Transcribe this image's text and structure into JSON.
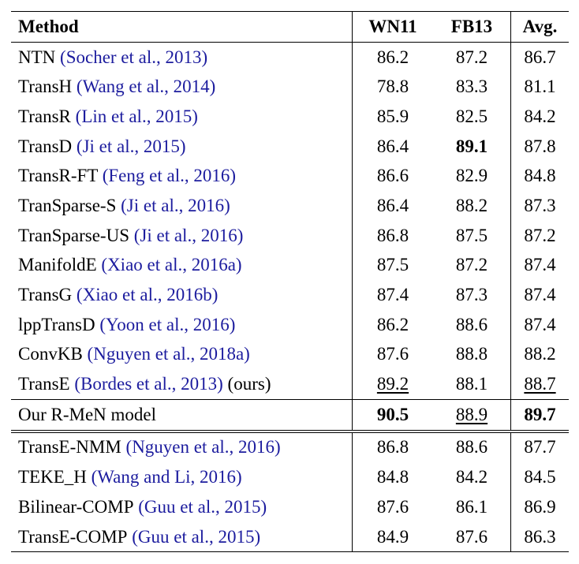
{
  "header": {
    "method": "Method",
    "wn11": "WN11",
    "fb13": "FB13",
    "avg": "Avg."
  },
  "rows": [
    {
      "name": "NTN",
      "name_sc": "",
      "cite": "(Socher et al., 2013)",
      "suffix": "",
      "wn11": "86.2",
      "fb13": "87.2",
      "avg": "86.7",
      "style": {
        "wn11": "",
        "fb13": "",
        "avg": ""
      }
    },
    {
      "name": "TransH",
      "name_sc": "",
      "cite": "(Wang et al., 2014)",
      "suffix": "",
      "wn11": "78.8",
      "fb13": "83.3",
      "avg": "81.1",
      "style": {
        "wn11": "",
        "fb13": "",
        "avg": ""
      }
    },
    {
      "name": "TransR",
      "name_sc": "",
      "cite": "(Lin et al., 2015)",
      "suffix": "",
      "wn11": "85.9",
      "fb13": "82.5",
      "avg": "84.2",
      "style": {
        "wn11": "",
        "fb13": "",
        "avg": ""
      }
    },
    {
      "name": "TransD",
      "name_sc": "",
      "cite": "(Ji et al., 2015)",
      "suffix": "",
      "wn11": "86.4",
      "fb13": "89.1",
      "avg": "87.8",
      "style": {
        "wn11": "",
        "fb13": "bold",
        "avg": ""
      }
    },
    {
      "name": "TransR-FT",
      "name_sc": "",
      "cite": "(Feng et al., 2016)",
      "suffix": "",
      "wn11": "86.6",
      "fb13": "82.9",
      "avg": "84.8",
      "style": {
        "wn11": "",
        "fb13": "",
        "avg": ""
      }
    },
    {
      "name": "TranSparse-S",
      "name_sc": "",
      "cite": "(Ji et al., 2016)",
      "suffix": "",
      "wn11": "86.4",
      "fb13": "88.2",
      "avg": "87.3",
      "style": {
        "wn11": "",
        "fb13": "",
        "avg": ""
      }
    },
    {
      "name": "TranSparse-US",
      "name_sc": "",
      "cite": "(Ji et al., 2016)",
      "suffix": "",
      "wn11": "86.8",
      "fb13": "87.5",
      "avg": "87.2",
      "style": {
        "wn11": "",
        "fb13": "",
        "avg": ""
      }
    },
    {
      "name": "ManifoldE",
      "name_sc": "",
      "cite": "(Xiao et al., 2016a)",
      "suffix": "",
      "wn11": "87.5",
      "fb13": "87.2",
      "avg": "87.4",
      "style": {
        "wn11": "",
        "fb13": "",
        "avg": ""
      }
    },
    {
      "name": "TransG",
      "name_sc": "",
      "cite": "(Xiao et al., 2016b)",
      "suffix": "",
      "wn11": "87.4",
      "fb13": "87.3",
      "avg": "87.4",
      "style": {
        "wn11": "",
        "fb13": "",
        "avg": ""
      }
    },
    {
      "name": "lppTransD",
      "name_sc": "",
      "cite": "(Yoon et al., 2016)",
      "suffix": "",
      "wn11": "86.2",
      "fb13": "88.6",
      "avg": "87.4",
      "style": {
        "wn11": "",
        "fb13": "",
        "avg": ""
      }
    },
    {
      "name": "ConvKB",
      "name_sc": "",
      "cite": "(Nguyen et al., 2018a)",
      "suffix": "",
      "wn11": "87.6",
      "fb13": "88.8",
      "avg": "88.2",
      "style": {
        "wn11": "",
        "fb13": "",
        "avg": ""
      }
    },
    {
      "name": "TransE",
      "name_sc": "",
      "cite": "(Bordes et al., 2013)",
      "suffix": "(ours)",
      "wn11": "89.2",
      "fb13": "88.1",
      "avg": "88.7",
      "style": {
        "wn11": "underline",
        "fb13": "",
        "avg": "underline"
      }
    },
    {
      "name": "Our R-MeN model",
      "name_sc": "",
      "cite": "",
      "suffix": "",
      "wn11": "90.5",
      "fb13": "88.9",
      "avg": "89.7",
      "style": {
        "wn11": "bold",
        "fb13": "underline",
        "avg": "bold"
      }
    },
    {
      "name": "TransE-NMM",
      "name_sc": "",
      "cite": "(Nguyen et al., 2016)",
      "suffix": "",
      "wn11": "86.8",
      "fb13": "88.6",
      "avg": "87.7",
      "style": {
        "wn11": "",
        "fb13": "",
        "avg": ""
      }
    },
    {
      "name": "TEKE_H",
      "name_sc": "",
      "cite": "(Wang and Li, 2016)",
      "suffix": "",
      "wn11": "84.8",
      "fb13": "84.2",
      "avg": "84.5",
      "style": {
        "wn11": "",
        "fb13": "",
        "avg": ""
      }
    },
    {
      "name": "Bilinear-",
      "name_sc": "COMP",
      "cite": "(Guu et al., 2015)",
      "suffix": "",
      "wn11": "87.6",
      "fb13": "86.1",
      "avg": "86.9",
      "style": {
        "wn11": "",
        "fb13": "",
        "avg": ""
      }
    },
    {
      "name": "TransE-",
      "name_sc": "COMP",
      "cite": "(Guu et al., 2015)",
      "suffix": "",
      "wn11": "84.9",
      "fb13": "87.6",
      "avg": "86.3",
      "style": {
        "wn11": "",
        "fb13": "",
        "avg": ""
      }
    }
  ],
  "colors": {
    "citation": "#1c1c9e",
    "text": "#000000"
  }
}
